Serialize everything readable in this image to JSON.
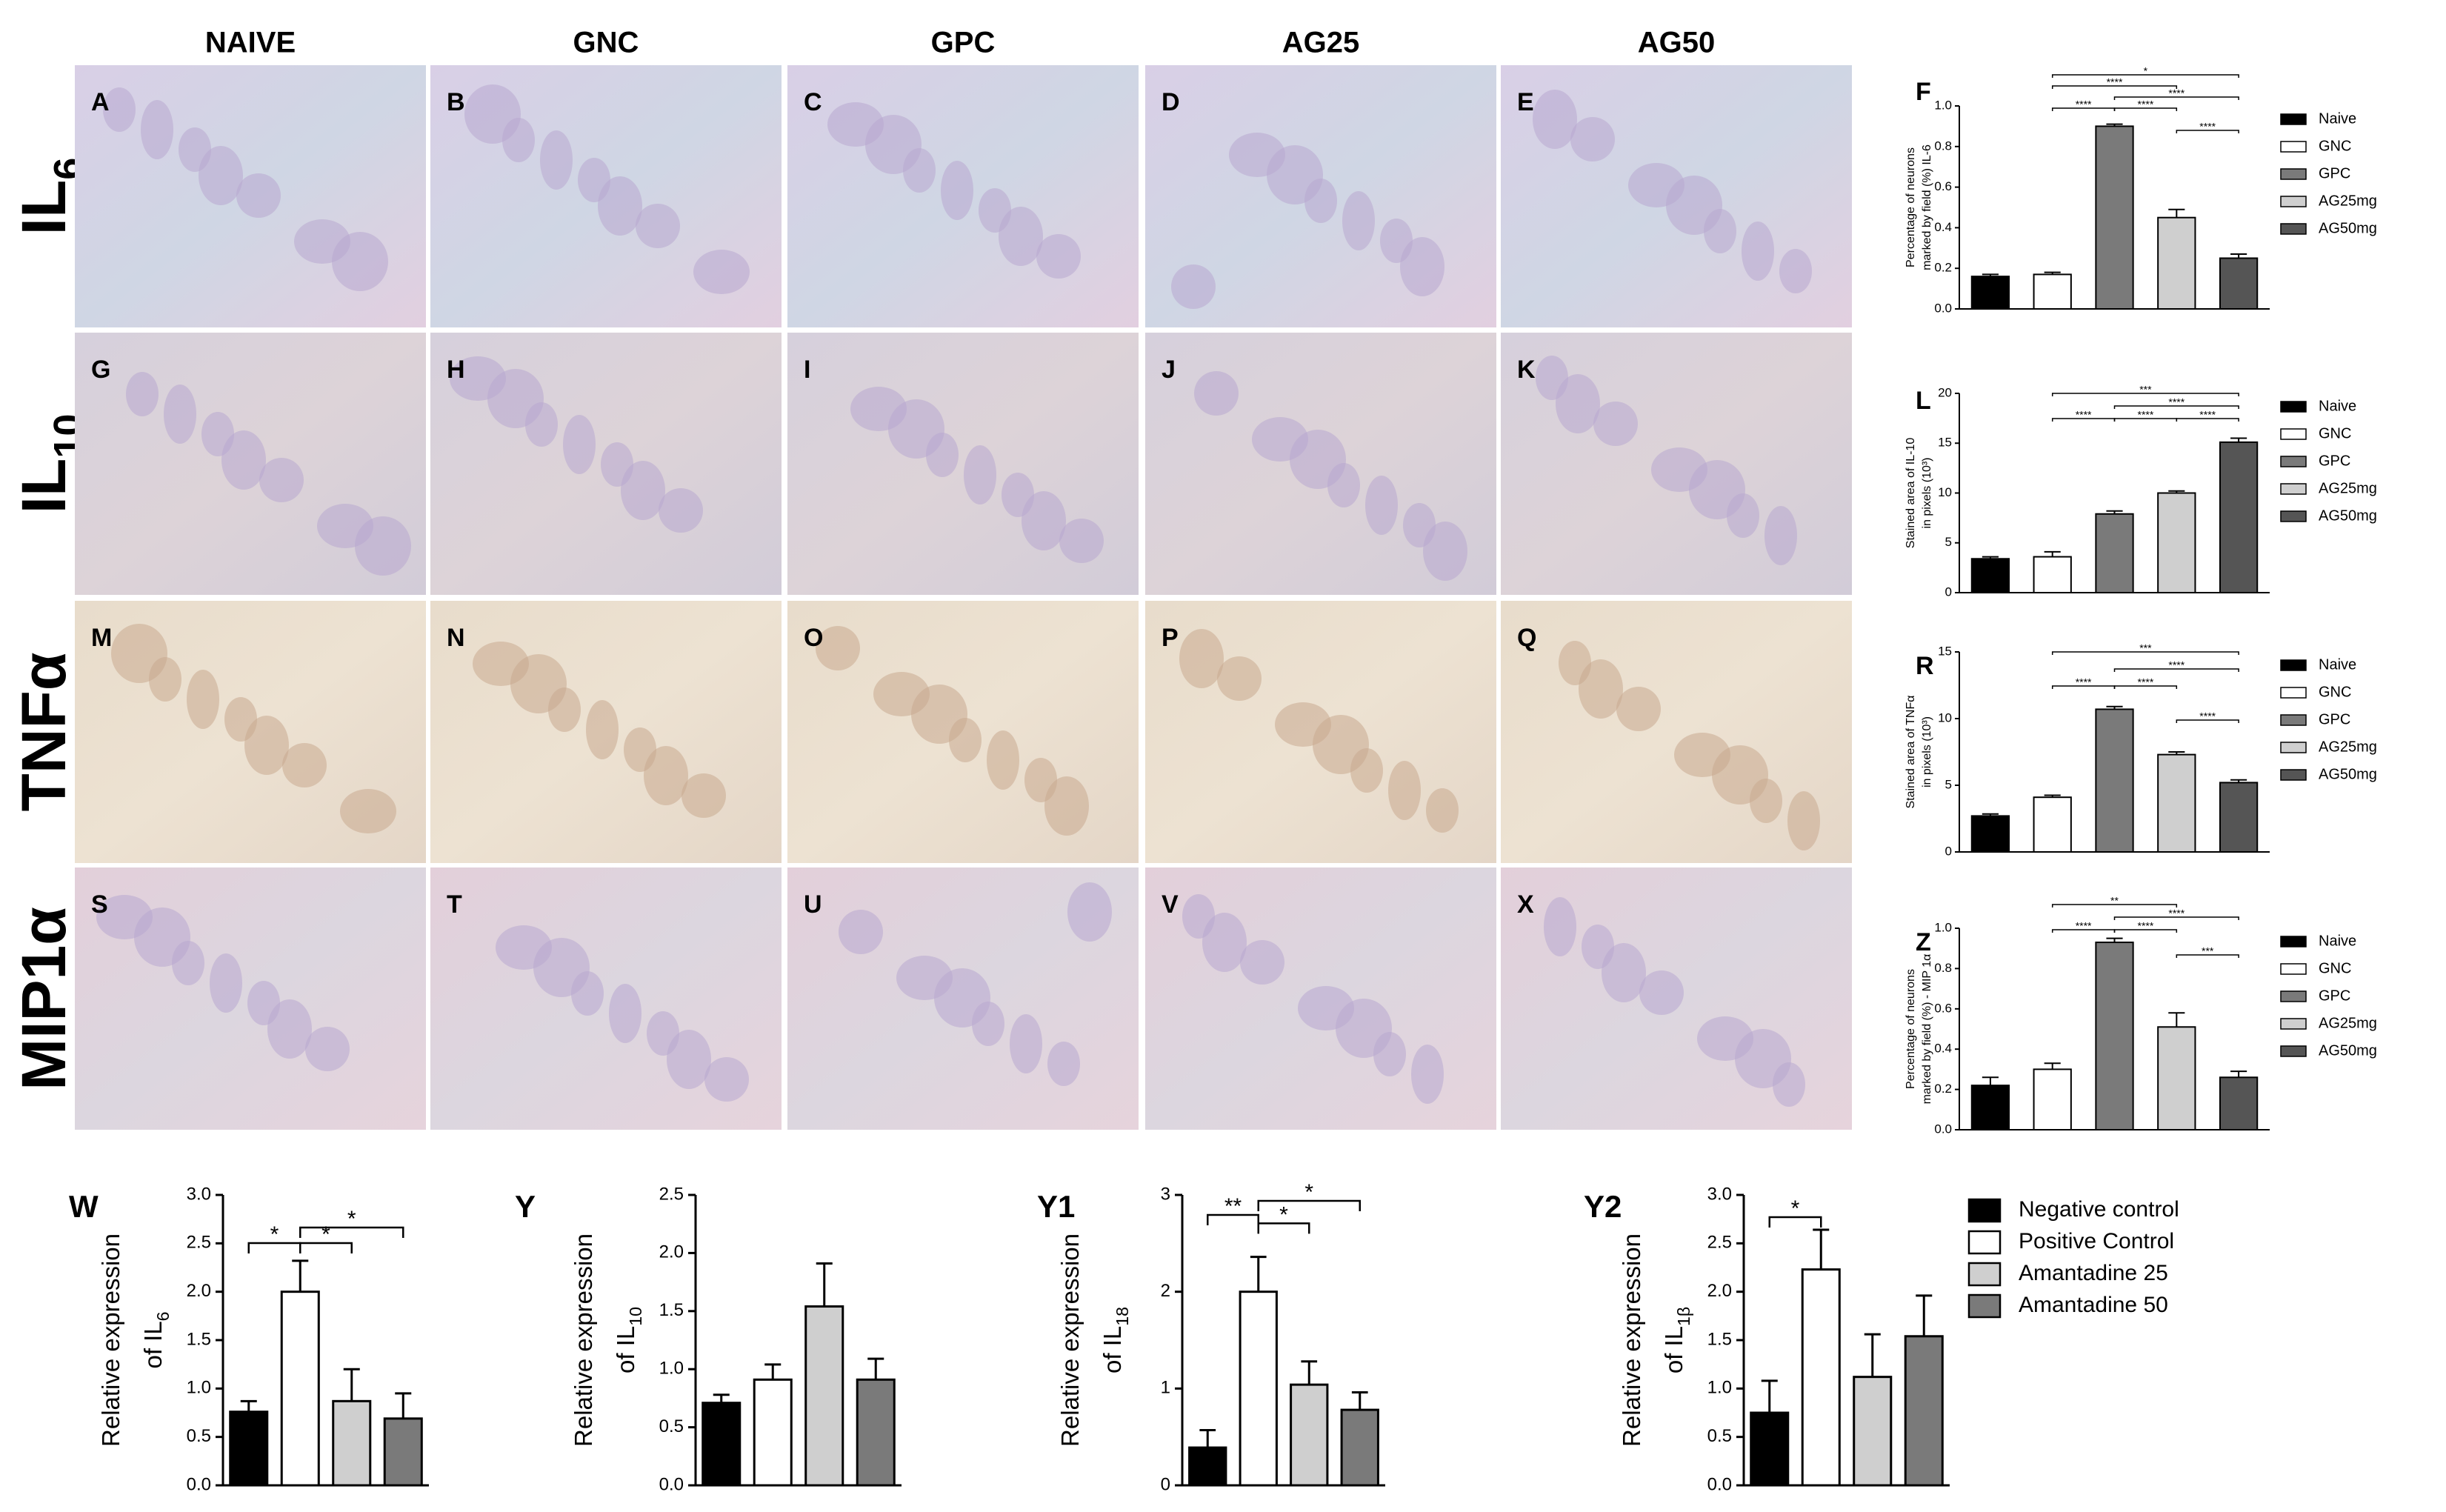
{
  "micrographs": {
    "columns": [
      "NAIVE",
      "GNC",
      "GPC",
      "AG25",
      "AG50"
    ],
    "rows": [
      {
        "label": "IL",
        "sub": "6"
      },
      {
        "label": "IL",
        "sub": "10"
      },
      {
        "label": "TNFα"
      },
      {
        "label": "MIP1α"
      }
    ],
    "panel_letters": [
      [
        "A",
        "B",
        "C",
        "D",
        "E"
      ],
      [
        "G",
        "H",
        "I",
        "J",
        "K"
      ],
      [
        "M",
        "N",
        "O",
        "P",
        "Q"
      ],
      [
        "S",
        "T",
        "U",
        "V",
        "X"
      ]
    ]
  },
  "chart_data": [
    {
      "type": "bar",
      "panel": "F",
      "ylabel": [
        "Percentage of neurons",
        "marked by field (%) IL-6"
      ],
      "categories": [
        "Naive",
        "GNC",
        "GPC",
        "AG25mg",
        "AG50mg"
      ],
      "colors": [
        "#000000",
        "#ffffff",
        "#7a7a7a",
        "#cfcfcf",
        "#555555"
      ],
      "values": [
        0.16,
        0.17,
        0.9,
        0.45,
        0.25
      ],
      "errors": [
        0.01,
        0.01,
        0.01,
        0.04,
        0.02
      ],
      "ylim": [
        0,
        1
      ],
      "yticks": [
        {
          "value": 0,
          "label": "0.0"
        },
        0.2,
        0.4,
        0.6,
        0.8,
        {
          "value": 1,
          "label": "1.0"
        }
      ],
      "annotations": [
        "*",
        "****",
        "****",
        "****",
        "****",
        "****"
      ]
    },
    {
      "type": "bar",
      "panel": "L",
      "ylabel": [
        "Stained area of IL-10",
        "in pixels (10³)"
      ],
      "categories": [
        "Naive",
        "GNC",
        "GPC",
        "AG25mg",
        "AG50mg"
      ],
      "colors": [
        "#000000",
        "#ffffff",
        "#7a7a7a",
        "#cfcfcf",
        "#555555"
      ],
      "values": [
        3.4,
        3.6,
        7.9,
        10,
        15.1
      ],
      "errors": [
        0.2,
        0.5,
        0.3,
        0.2,
        0.4
      ],
      "ylim": [
        0,
        20
      ],
      "yticks": [
        0,
        5,
        10,
        15,
        20
      ],
      "annotations": [
        "***",
        "****",
        "****",
        "****",
        "****"
      ]
    },
    {
      "type": "bar",
      "panel": "R",
      "ylabel": [
        "Stained area of TNFα",
        "in pixels (10³)"
      ],
      "categories": [
        "Naive",
        "GNC",
        "GPC",
        "AG25mg",
        "AG50mg"
      ],
      "colors": [
        "#000000",
        "#ffffff",
        "#7a7a7a",
        "#cfcfcf",
        "#555555"
      ],
      "values": [
        2.7,
        4.1,
        10.7,
        7.3,
        5.2
      ],
      "errors": [
        0.15,
        0.15,
        0.2,
        0.2,
        0.2
      ],
      "ylim": [
        0,
        15
      ],
      "yticks": [
        0,
        5,
        10,
        15
      ],
      "annotations": [
        "***",
        "****",
        "****",
        "****",
        "****"
      ]
    },
    {
      "type": "bar",
      "panel": "Z",
      "ylabel": [
        "Percentage of neurons",
        "marked by field (%) - MIP 1α"
      ],
      "categories": [
        "Naive",
        "GNC",
        "GPC",
        "AG25mg",
        "AG50mg"
      ],
      "colors": [
        "#000000",
        "#ffffff",
        "#7a7a7a",
        "#cfcfcf",
        "#555555"
      ],
      "values": [
        0.22,
        0.3,
        0.93,
        0.51,
        0.26
      ],
      "errors": [
        0.04,
        0.03,
        0.02,
        0.07,
        0.03
      ],
      "ylim": [
        0,
        1
      ],
      "yticks": [
        {
          "value": 0,
          "label": "0.0"
        },
        0.2,
        0.4,
        0.6,
        0.8,
        {
          "value": 1,
          "label": "1.0"
        }
      ],
      "annotations": [
        "**",
        "****",
        "****",
        "****",
        "***"
      ]
    },
    {
      "type": "bar",
      "panel": "W",
      "ylabel": [
        "Relative expression",
        "of IL"
      ],
      "ylabel_sub": "6",
      "colors": [
        "#000000",
        "#ffffff",
        "#cfcfcf",
        "#7a7a7a"
      ],
      "values": [
        0.76,
        2.0,
        0.87,
        0.69
      ],
      "errors": [
        0.11,
        0.32,
        0.33,
        0.26
      ],
      "ylim": [
        0,
        3
      ],
      "yticks": [
        {
          "value": 0,
          "label": "0.0"
        },
        0.5,
        {
          "value": 1,
          "label": "1.0"
        },
        1.5,
        {
          "value": 2,
          "label": "2.0"
        },
        2.5,
        {
          "value": 3,
          "label": "3.0"
        }
      ],
      "annotations": [
        "*",
        "*",
        "*"
      ]
    },
    {
      "type": "bar",
      "panel": "Y",
      "ylabel": [
        "Relative expression",
        "of IL"
      ],
      "ylabel_sub": "10",
      "colors": [
        "#000000",
        "#ffffff",
        "#cfcfcf",
        "#7a7a7a"
      ],
      "values": [
        0.71,
        0.91,
        1.54,
        0.91
      ],
      "errors": [
        0.07,
        0.13,
        0.37,
        0.18
      ],
      "ylim": [
        0,
        2.5
      ],
      "yticks": [
        {
          "value": 0,
          "label": "0.0"
        },
        0.5,
        {
          "value": 1,
          "label": "1.0"
        },
        1.5,
        {
          "value": 2,
          "label": "2.0"
        },
        2.5
      ],
      "annotations": []
    },
    {
      "type": "bar",
      "panel": "Y1",
      "ylabel": [
        "Relative expression",
        "of IL"
      ],
      "ylabel_sub": "18",
      "colors": [
        "#000000",
        "#ffffff",
        "#cfcfcf",
        "#7a7a7a"
      ],
      "values": [
        0.39,
        2.0,
        1.04,
        0.78
      ],
      "errors": [
        0.18,
        0.36,
        0.24,
        0.18
      ],
      "ylim": [
        0,
        3
      ],
      "yticks": [
        0,
        1,
        2,
        3
      ],
      "annotations": [
        "**",
        "*",
        "*"
      ]
    },
    {
      "type": "bar",
      "panel": "Y2",
      "ylabel": [
        "Relative expression",
        "of IL"
      ],
      "ylabel_sub": "1β",
      "categories": [
        "Negative control",
        "Positive Control",
        "Amantadine 25",
        "Amantadine 50"
      ],
      "colors": [
        "#000000",
        "#ffffff",
        "#cfcfcf",
        "#7a7a7a"
      ],
      "values": [
        0.75,
        2.23,
        1.12,
        1.54
      ],
      "errors": [
        0.33,
        0.41,
        0.44,
        0.42
      ],
      "ylim": [
        0,
        3
      ],
      "yticks": [
        {
          "value": 0,
          "label": "0.0"
        },
        0.5,
        {
          "value": 1,
          "label": "1.0"
        },
        1.5,
        {
          "value": 2,
          "label": "2.0"
        },
        2.5,
        {
          "value": 3,
          "label": "3.0"
        }
      ],
      "annotations": [
        "*"
      ]
    }
  ]
}
